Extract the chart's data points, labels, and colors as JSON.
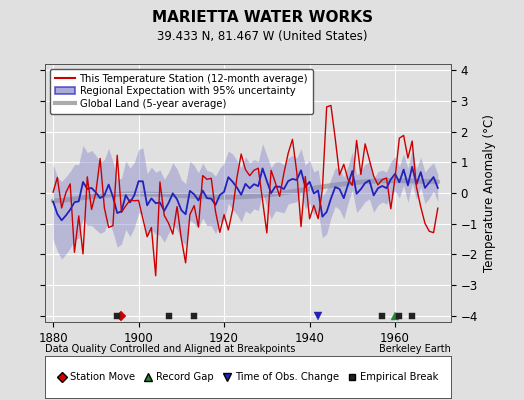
{
  "title": "MARIETTA WATER WORKS",
  "subtitle": "39.433 N, 81.467 W (United States)",
  "footer_left": "Data Quality Controlled and Aligned at Breakpoints",
  "footer_right": "Berkeley Earth",
  "ylabel": "Temperature Anomaly (°C)",
  "xlim": [
    1878,
    1973
  ],
  "ylim": [
    -4.2,
    4.2
  ],
  "yticks": [
    -4,
    -3,
    -2,
    -1,
    0,
    1,
    2,
    3,
    4
  ],
  "xticks": [
    1880,
    1900,
    1920,
    1940,
    1960
  ],
  "bg_color": "#e0e0e0",
  "plot_bg_color": "#e0e0e0",
  "grid_color": "#ffffff",
  "red_color": "#cc0000",
  "blue_color": "#2222bb",
  "blue_fill_color": "#8888cc",
  "gray_color": "#aaaaaa",
  "legend_line_items": [
    {
      "label": "This Temperature Station (12-month average)",
      "color": "#cc0000",
      "lw": 1.5
    },
    {
      "label": "Regional Expectation with 95% uncertainty",
      "color": "#2222bb",
      "lw": 1.5,
      "fill": "#8888cc"
    },
    {
      "label": "Global Land (5-year average)",
      "color": "#aaaaaa",
      "lw": 3
    }
  ],
  "station_moves_x": [
    1896.0
  ],
  "record_gaps_x": [
    1960.0
  ],
  "obs_changes_x": [
    1942.0
  ],
  "empirical_breaks_x": [
    1895.0,
    1907.0,
    1913.0,
    1957.0,
    1961.0,
    1964.0
  ]
}
